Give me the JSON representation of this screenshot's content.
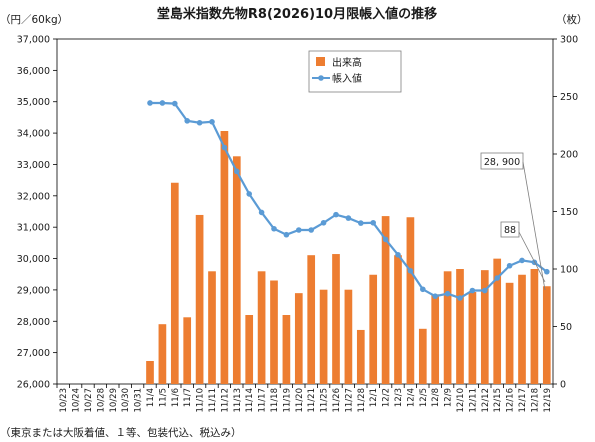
{
  "chart_data": {
    "type": "bar",
    "title": "堂島米指数先物R8(2026)10月限帳入値の推移",
    "ylabel_left": "（円／60kg）",
    "ylabel_right": "（枚）",
    "footnote": "（東京または大阪着値、１等、包装代込、税込み）",
    "categories": [
      "10/23",
      "10/24",
      "10/27",
      "10/28",
      "10/29",
      "10/30",
      "10/31",
      "11/4",
      "11/5",
      "11/6",
      "11/7",
      "11/10",
      "11/11",
      "11/12",
      "11/13",
      "11/14",
      "11/17",
      "11/18",
      "11/19",
      "11/20",
      "11/21",
      "11/25",
      "11/26",
      "11/27",
      "11/28",
      "12/1",
      "12/2",
      "12/3",
      "12/4",
      "12/5",
      "12/8",
      "12/9",
      "12/10",
      "12/11",
      "12/12",
      "12/15",
      "12/16",
      "12/17",
      "12/18",
      "12/19"
    ],
    "x_tick_labels": [
      "10/23",
      "10/24",
      "10/27",
      "10/28",
      "10/29",
      "10/30",
      "10/31",
      "11/4",
      "11/5",
      "11/6",
      "11/7",
      "11/10",
      "11/11",
      "11/12",
      "11/13",
      "11/14",
      "11/17",
      "11/18",
      "11/19",
      "11/20",
      "11/21",
      "11/25",
      "11/26",
      "11/27",
      "11/28",
      "12/1",
      "12/2",
      "12/3",
      "12/4",
      "12/5",
      "12/8",
      "12/9",
      "12/10",
      "12/11",
      "12/12",
      "12/15",
      "12/16",
      "12/17",
      "12/18",
      "12/19"
    ],
    "y_left": {
      "min": 26000,
      "max": 37000,
      "step": 1000,
      "tick_labels": [
        "26,000",
        "27,000",
        "28,000",
        "29,000",
        "30,000",
        "31,000",
        "32,000",
        "33,000",
        "34,000",
        "35,000",
        "36,000",
        "37,000"
      ]
    },
    "y_right": {
      "min": 0,
      "max": 300,
      "step": 50,
      "tick_labels": [
        "0",
        "50",
        "100",
        "150",
        "200",
        "250",
        "300"
      ]
    },
    "series": [
      {
        "name": "出来高",
        "type": "bar",
        "axis": "right",
        "color": "#ed7d31",
        "values": [
          0,
          0,
          0,
          0,
          0,
          0,
          0,
          20,
          52,
          175,
          58,
          147,
          98,
          220,
          198,
          60,
          98,
          90,
          60,
          79,
          112,
          82,
          113,
          82,
          47,
          95,
          146,
          112,
          145,
          48,
          78,
          98,
          100,
          80,
          99,
          109,
          88,
          95,
          100,
          85
        ]
      },
      {
        "name": "帳入値",
        "type": "line",
        "axis": "left",
        "color": "#5b9bd5",
        "values": [
          null,
          null,
          null,
          null,
          null,
          null,
          null,
          34960,
          34960,
          34940,
          34390,
          34330,
          34360,
          33540,
          32780,
          32060,
          31470,
          30950,
          30760,
          30910,
          30910,
          31140,
          31400,
          31290,
          31130,
          31140,
          30610,
          30120,
          29610,
          29020,
          28800,
          28880,
          28740,
          28980,
          28980,
          29380,
          29770,
          29940,
          29880,
          29580
        ]
      }
    ],
    "callouts": [
      "28, 900",
      "88"
    ],
    "legend_position": "top-center",
    "grid": false
  }
}
